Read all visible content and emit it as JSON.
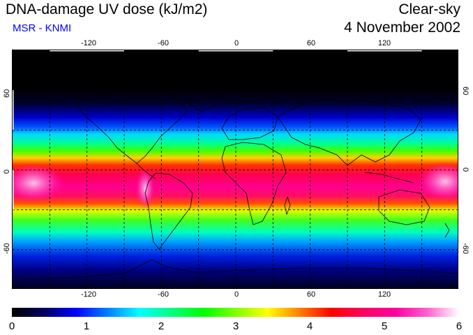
{
  "title": "DNA-damage UV dose (kJ/m2)",
  "credit": "MSR - KNMI",
  "condition": "Clear-sky",
  "date": "4 November 2002",
  "map": {
    "projection": "equirectangular",
    "lon_range": [
      -180,
      180
    ],
    "lat_range": [
      -90,
      90
    ],
    "gridlines_lon": [
      -150,
      -120,
      -90,
      -60,
      -30,
      0,
      30,
      60,
      90,
      120,
      150
    ],
    "gridlines_lat": [
      -60,
      -30,
      0,
      30,
      60
    ],
    "lon_tick_labels": [
      {
        "value": -120,
        "text": "-120"
      },
      {
        "value": -60,
        "text": "-60"
      },
      {
        "value": 0,
        "text": "0"
      },
      {
        "value": 60,
        "text": "60"
      },
      {
        "value": 120,
        "text": "120"
      }
    ],
    "lat_tick_labels": [
      {
        "value": 60,
        "text": "60"
      },
      {
        "value": 0,
        "text": "0"
      },
      {
        "value": -60,
        "text": "-60"
      }
    ]
  },
  "colorbar": {
    "min": 0,
    "max": 6,
    "tick_labels": [
      "0",
      "1",
      "2",
      "3",
      "4",
      "5",
      "6"
    ],
    "colors": [
      "#000000",
      "#000060",
      "#0000ff",
      "#0080ff",
      "#00ffff",
      "#00ff80",
      "#00ff00",
      "#80ff00",
      "#ffff00",
      "#ff8000",
      "#ff0000",
      "#ff0060",
      "#ff00a0",
      "#ff60d0",
      "#ffffff"
    ]
  }
}
